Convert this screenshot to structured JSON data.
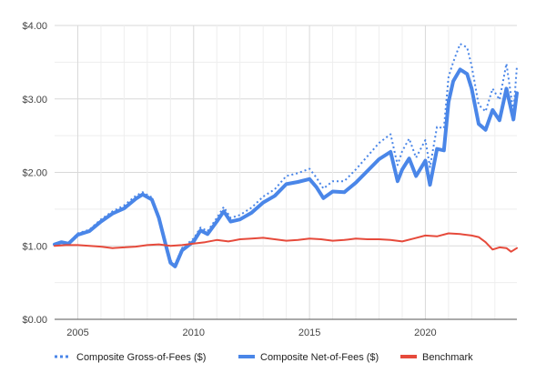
{
  "chart_data": {
    "type": "line",
    "title": "",
    "xlabel": "",
    "ylabel": "",
    "xlim": [
      "2004-01",
      "2023-12"
    ],
    "ylim": [
      0,
      4
    ],
    "y_ticks": [
      {
        "value": 0,
        "label": "$0.00"
      },
      {
        "value": 1,
        "label": "$1.00"
      },
      {
        "value": 2,
        "label": "$2.00"
      },
      {
        "value": 3,
        "label": "$3.00"
      },
      {
        "value": 4,
        "label": "$4.00"
      }
    ],
    "x_ticks": [
      {
        "value": 2005,
        "label": "2005"
      },
      {
        "value": 2010,
        "label": "2010"
      },
      {
        "value": 2015,
        "label": "2015"
      },
      {
        "value": 2020,
        "label": "2020"
      }
    ],
    "grid": true,
    "legend_position": "bottom",
    "series": [
      {
        "name": "Composite Gross-of-Fees ($)",
        "color": "#4a86e8",
        "style": "dotted",
        "x": [
          2004.0,
          2004.3,
          2004.6,
          2005.0,
          2005.5,
          2006.0,
          2006.5,
          2007.0,
          2007.5,
          2007.8,
          2008.2,
          2008.5,
          2008.8,
          2009.0,
          2009.2,
          2009.5,
          2010.0,
          2010.3,
          2010.6,
          2011.0,
          2011.3,
          2011.6,
          2012.0,
          2012.5,
          2013.0,
          2013.5,
          2014.0,
          2014.5,
          2015.0,
          2015.3,
          2015.6,
          2016.0,
          2016.5,
          2017.0,
          2017.5,
          2018.0,
          2018.5,
          2018.8,
          2019.0,
          2019.3,
          2019.6,
          2020.0,
          2020.2,
          2020.5,
          2020.8,
          2021.0,
          2021.2,
          2021.5,
          2021.8,
          2022.0,
          2022.3,
          2022.6,
          2022.9,
          2023.2,
          2023.5,
          2023.8,
          2023.95
        ],
        "y": [
          1.03,
          1.06,
          1.04,
          1.17,
          1.22,
          1.36,
          1.47,
          1.55,
          1.68,
          1.73,
          1.66,
          1.41,
          1.04,
          0.8,
          0.75,
          0.97,
          1.1,
          1.25,
          1.2,
          1.38,
          1.53,
          1.38,
          1.42,
          1.52,
          1.67,
          1.77,
          1.95,
          1.99,
          2.05,
          1.93,
          1.78,
          1.88,
          1.88,
          2.04,
          2.22,
          2.4,
          2.52,
          2.1,
          2.29,
          2.46,
          2.2,
          2.44,
          2.07,
          2.62,
          2.6,
          3.3,
          3.5,
          3.75,
          3.7,
          3.45,
          2.92,
          2.83,
          3.14,
          2.99,
          3.48,
          2.82,
          3.44
        ]
      },
      {
        "name": "Composite Net-of-Fees ($)",
        "color": "#4a86e8",
        "style": "solid",
        "x": [
          2004.0,
          2004.3,
          2004.6,
          2005.0,
          2005.5,
          2006.0,
          2006.5,
          2007.0,
          2007.5,
          2007.8,
          2008.2,
          2008.5,
          2008.8,
          2009.0,
          2009.2,
          2009.5,
          2010.0,
          2010.3,
          2010.6,
          2011.0,
          2011.3,
          2011.6,
          2012.0,
          2012.5,
          2013.0,
          2013.5,
          2014.0,
          2014.5,
          2015.0,
          2015.3,
          2015.6,
          2016.0,
          2016.5,
          2017.0,
          2017.5,
          2018.0,
          2018.5,
          2018.8,
          2019.0,
          2019.3,
          2019.6,
          2020.0,
          2020.2,
          2020.5,
          2020.8,
          2021.0,
          2021.2,
          2021.5,
          2021.8,
          2022.0,
          2022.3,
          2022.6,
          2022.9,
          2023.2,
          2023.5,
          2023.8,
          2023.95
        ],
        "y": [
          1.02,
          1.05,
          1.03,
          1.15,
          1.2,
          1.33,
          1.44,
          1.51,
          1.64,
          1.7,
          1.63,
          1.38,
          1.01,
          0.77,
          0.72,
          0.94,
          1.06,
          1.21,
          1.16,
          1.33,
          1.47,
          1.33,
          1.36,
          1.45,
          1.59,
          1.68,
          1.84,
          1.87,
          1.91,
          1.8,
          1.65,
          1.74,
          1.73,
          1.86,
          2.02,
          2.18,
          2.28,
          1.88,
          2.04,
          2.19,
          1.95,
          2.16,
          1.83,
          2.32,
          2.3,
          2.96,
          3.24,
          3.4,
          3.34,
          3.14,
          2.66,
          2.58,
          2.85,
          2.71,
          3.14,
          2.72,
          3.08
        ]
      },
      {
        "name": "Benchmark",
        "color": "#e64a3b",
        "style": "solid",
        "x": [
          2004.0,
          2004.5,
          2005.0,
          2005.5,
          2006.0,
          2006.5,
          2007.0,
          2007.5,
          2008.0,
          2008.5,
          2009.0,
          2009.5,
          2010.0,
          2010.5,
          2011.0,
          2011.5,
          2012.0,
          2012.5,
          2013.0,
          2013.5,
          2014.0,
          2014.5,
          2015.0,
          2015.5,
          2016.0,
          2016.5,
          2017.0,
          2017.5,
          2018.0,
          2018.5,
          2019.0,
          2019.5,
          2020.0,
          2020.5,
          2021.0,
          2021.5,
          2022.0,
          2022.3,
          2022.6,
          2022.9,
          2023.2,
          2023.5,
          2023.7,
          2023.95
        ],
        "y": [
          1.0,
          1.01,
          1.01,
          1.0,
          0.99,
          0.97,
          0.98,
          0.99,
          1.01,
          1.02,
          1.0,
          1.01,
          1.03,
          1.05,
          1.08,
          1.06,
          1.09,
          1.1,
          1.11,
          1.09,
          1.07,
          1.08,
          1.1,
          1.09,
          1.07,
          1.08,
          1.1,
          1.09,
          1.09,
          1.08,
          1.06,
          1.1,
          1.14,
          1.13,
          1.17,
          1.16,
          1.14,
          1.12,
          1.05,
          0.95,
          0.98,
          0.97,
          0.92,
          0.97
        ]
      }
    ]
  }
}
